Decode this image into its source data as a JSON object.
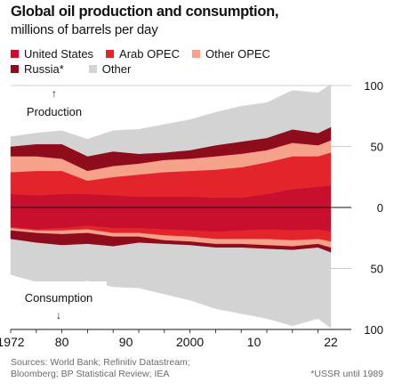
{
  "header": {
    "title": "Global oil production and consumption,",
    "subtitle": "millions of barrels per day"
  },
  "legend": {
    "row1": [
      {
        "label": "United States",
        "color": "#c8102e"
      },
      {
        "label": "Arab OPEC",
        "color": "#e3242b"
      },
      {
        "label": "Other OPEC",
        "color": "#f6a18a"
      }
    ],
    "row2": [
      {
        "label": "Russia*",
        "color": "#8f0c1c"
      },
      {
        "label": "Other",
        "color": "#d3d3d3"
      }
    ]
  },
  "annotations": {
    "production": "Production",
    "consumption": "Consumption"
  },
  "footer": {
    "source_line1": "Sources: World Bank; Refinitiv Datastream;",
    "source_line2": "Bloomberg; BP Statistical Review; IEA",
    "note": "*USSR until 1989"
  },
  "chart_data": {
    "type": "area",
    "x": [
      1972,
      1976,
      1980,
      1984,
      1988,
      1992,
      1996,
      2000,
      2004,
      2008,
      2012,
      2016,
      2020,
      2022
    ],
    "x_tick_labels": [
      {
        "value": 1972,
        "label": "1972"
      },
      {
        "value": 1980,
        "label": "80"
      },
      {
        "value": 1990,
        "label": "90"
      },
      {
        "value": 2000,
        "label": "2000"
      },
      {
        "value": 2010,
        "label": "10"
      },
      {
        "value": 2022,
        "label": "22"
      }
    ],
    "y_ticks": [
      {
        "value": 100,
        "label": "100"
      },
      {
        "value": 50,
        "label": "50"
      },
      {
        "value": 0,
        "label": "0"
      },
      {
        "value": -50,
        "label": "50"
      },
      {
        "value": -100,
        "label": "100"
      }
    ],
    "ylim": [
      -100,
      100
    ],
    "production": {
      "stack_order": [
        "United States",
        "Arab OPEC",
        "Other OPEC",
        "Russia*",
        "Other"
      ],
      "series": [
        {
          "name": "United States",
          "color": "#c8102e",
          "values": [
            11,
            10,
            11,
            11,
            10,
            9,
            9,
            9,
            8,
            8,
            11,
            15,
            17,
            18
          ]
        },
        {
          "name": "Arab OPEC",
          "color": "#e3242b",
          "values": [
            18,
            20,
            19,
            11,
            15,
            18,
            20,
            21,
            23,
            25,
            26,
            27,
            25,
            27
          ]
        },
        {
          "name": "Other OPEC",
          "color": "#f6a18a",
          "values": [
            13,
            12,
            10,
            8,
            9,
            9,
            10,
            10,
            11,
            11,
            10,
            11,
            9,
            10
          ]
        },
        {
          "name": "Russia*",
          "color": "#8f0c1c",
          "values": [
            8,
            10,
            12,
            12,
            12,
            8,
            6,
            7,
            9,
            10,
            10,
            11,
            10,
            11
          ]
        },
        {
          "name": "Other",
          "color": "#d3d3d3",
          "values": [
            8,
            9,
            11,
            14,
            17,
            20,
            23,
            25,
            27,
            29,
            29,
            32,
            33,
            35
          ]
        }
      ]
    },
    "consumption": {
      "stack_order": [
        "United States",
        "Arab OPEC",
        "Other OPEC",
        "Russia*",
        "Other"
      ],
      "series": [
        {
          "name": "United States",
          "color": "#c8102e",
          "values": [
            16,
            18,
            17,
            15,
            17,
            17,
            18,
            19,
            20,
            19,
            18,
            19,
            18,
            20
          ]
        },
        {
          "name": "Arab OPEC",
          "color": "#e3242b",
          "values": [
            1,
            1,
            2,
            3,
            4,
            4,
            5,
            5,
            6,
            7,
            8,
            8,
            8,
            8
          ]
        },
        {
          "name": "Other OPEC",
          "color": "#f6a18a",
          "values": [
            2,
            2,
            3,
            3,
            3,
            3,
            4,
            4,
            4,
            4,
            5,
            5,
            4,
            5
          ]
        },
        {
          "name": "Russia*",
          "color": "#8f0c1c",
          "values": [
            7,
            8,
            9,
            9,
            8,
            5,
            3,
            3,
            3,
            3,
            3,
            3,
            3,
            4
          ]
        },
        {
          "name": "Other",
          "color": "#d3d3d3",
          "values": [
            29,
            32,
            32,
            30,
            33,
            37,
            41,
            45,
            50,
            54,
            57,
            62,
            58,
            62
          ]
        }
      ]
    },
    "grid": true,
    "legend_placement": "top-left"
  }
}
